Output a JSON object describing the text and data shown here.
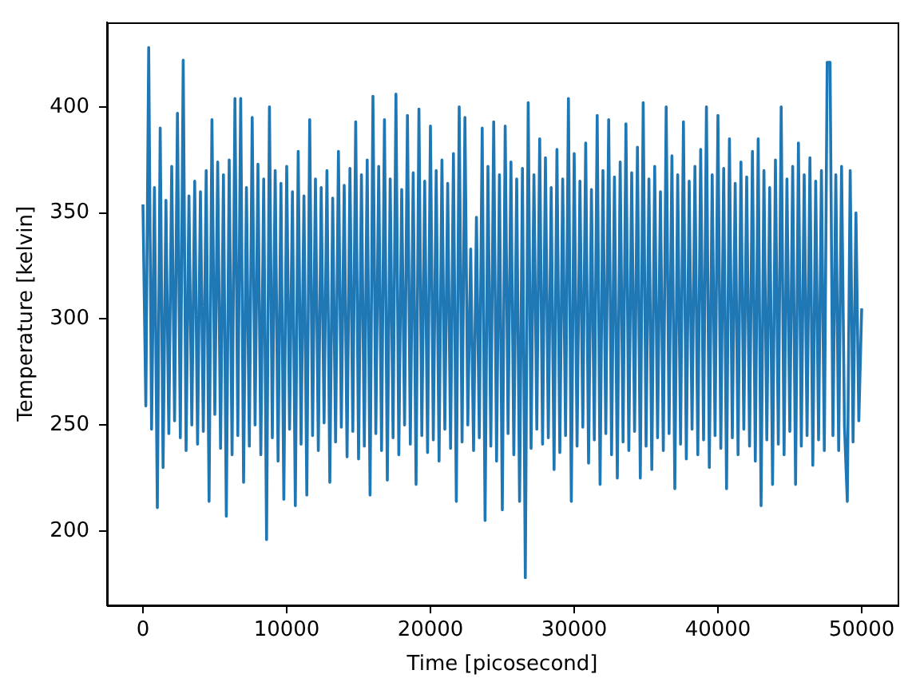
{
  "chart_data": {
    "type": "line",
    "xlabel": "Time [picosecond]",
    "ylabel": "Temperature [kelvin]",
    "color": "#1f77b4",
    "xlim": [
      -2500,
      52500
    ],
    "ylim": [
      165,
      440
    ],
    "xticks": [
      0,
      10000,
      20000,
      30000,
      40000,
      50000
    ],
    "yticks": [
      200,
      250,
      300,
      350,
      400
    ],
    "x": [
      0,
      200,
      400,
      600,
      800,
      1000,
      1200,
      1400,
      1600,
      1800,
      2000,
      2200,
      2400,
      2600,
      2800,
      3000,
      3200,
      3400,
      3600,
      3800,
      4000,
      4200,
      4400,
      4600,
      4800,
      5000,
      5200,
      5400,
      5600,
      5800,
      6000,
      6200,
      6400,
      6600,
      6800,
      7000,
      7200,
      7400,
      7600,
      7800,
      8000,
      8200,
      8400,
      8600,
      8800,
      9000,
      9200,
      9400,
      9600,
      9800,
      10000,
      10200,
      10400,
      10600,
      10800,
      11000,
      11200,
      11400,
      11600,
      11800,
      12000,
      12200,
      12400,
      12600,
      12800,
      13000,
      13200,
      13400,
      13600,
      13800,
      14000,
      14200,
      14400,
      14600,
      14800,
      15000,
      15200,
      15400,
      15600,
      15800,
      16000,
      16200,
      16400,
      16600,
      16800,
      17000,
      17200,
      17400,
      17600,
      17800,
      18000,
      18200,
      18400,
      18600,
      18800,
      19000,
      19200,
      19400,
      19600,
      19800,
      20000,
      20200,
      20400,
      20600,
      20800,
      21000,
      21200,
      21400,
      21600,
      21800,
      22000,
      22200,
      22400,
      22600,
      22800,
      23000,
      23200,
      23400,
      23600,
      23800,
      24000,
      24200,
      24400,
      24600,
      24800,
      25000,
      25200,
      25400,
      25600,
      25800,
      26000,
      26200,
      26400,
      26600,
      26800,
      27000,
      27200,
      27400,
      27600,
      27800,
      28000,
      28200,
      28400,
      28600,
      28800,
      29000,
      29200,
      29400,
      29600,
      29800,
      30000,
      30200,
      30400,
      30600,
      30800,
      31000,
      31200,
      31400,
      31600,
      31800,
      32000,
      32200,
      32400,
      32600,
      32800,
      33000,
      33200,
      33400,
      33600,
      33800,
      34000,
      34200,
      34400,
      34600,
      34800,
      35000,
      35200,
      35400,
      35600,
      35800,
      36000,
      36200,
      36400,
      36600,
      36800,
      37000,
      37200,
      37400,
      37600,
      37800,
      38000,
      38200,
      38400,
      38600,
      38800,
      39000,
      39200,
      39400,
      39600,
      39800,
      40000,
      40200,
      40400,
      40600,
      40800,
      41000,
      41200,
      41400,
      41600,
      41800,
      42000,
      42200,
      42400,
      42600,
      42800,
      43000,
      43200,
      43400,
      43600,
      43800,
      44000,
      44200,
      44400,
      44600,
      44800,
      45000,
      45200,
      45400,
      45600,
      45800,
      46000,
      46200,
      46400,
      46600,
      46800,
      47000,
      47200,
      47400,
      47600,
      47800,
      48000,
      48200,
      48400,
      48600,
      48800,
      49000,
      49200,
      49400,
      49600,
      49800,
      50000
    ],
    "values": [
      354,
      259,
      428,
      248,
      362,
      211,
      390,
      230,
      356,
      246,
      372,
      252,
      397,
      244,
      422,
      238,
      358,
      250,
      365,
      241,
      360,
      247,
      370,
      214,
      394,
      255,
      374,
      239,
      368,
      207,
      375,
      236,
      404,
      245,
      404,
      223,
      362,
      240,
      395,
      250,
      373,
      236,
      366,
      196,
      400,
      244,
      370,
      233,
      364,
      215,
      372,
      248,
      360,
      212,
      379,
      241,
      358,
      217,
      394,
      245,
      366,
      238,
      362,
      251,
      370,
      223,
      357,
      242,
      379,
      249,
      363,
      235,
      371,
      247,
      393,
      234,
      368,
      240,
      375,
      217,
      405,
      246,
      372,
      238,
      394,
      224,
      366,
      244,
      406,
      236,
      361,
      250,
      396,
      241,
      369,
      222,
      399,
      245,
      365,
      237,
      391,
      243,
      370,
      233,
      375,
      248,
      364,
      239,
      378,
      214,
      400,
      242,
      395,
      250,
      333,
      238,
      348,
      244,
      390,
      205,
      372,
      240,
      393,
      233,
      368,
      210,
      391,
      246,
      374,
      236,
      366,
      214,
      371,
      178,
      402,
      239,
      368,
      248,
      385,
      241,
      376,
      244,
      362,
      229,
      380,
      237,
      366,
      245,
      404,
      214,
      378,
      240,
      365,
      249,
      383,
      232,
      361,
      243,
      396,
      222,
      370,
      246,
      394,
      236,
      367,
      225,
      374,
      242,
      392,
      238,
      369,
      247,
      381,
      225,
      402,
      240,
      366,
      229,
      372,
      244,
      360,
      238,
      400,
      246,
      377,
      220,
      368,
      241,
      393,
      234,
      365,
      248,
      372,
      236,
      380,
      243,
      400,
      230,
      368,
      245,
      396,
      239,
      371,
      220,
      385,
      244,
      364,
      236,
      374,
      248,
      367,
      240,
      379,
      233,
      385,
      212,
      370,
      243,
      362,
      222,
      375,
      241,
      400,
      236,
      366,
      247,
      372,
      222,
      383,
      240,
      368,
      245,
      376,
      231,
      365,
      243,
      370,
      238,
      421,
      421,
      245,
      368,
      238,
      372,
      250,
      214,
      370,
      242,
      350,
      252,
      305
    ]
  }
}
